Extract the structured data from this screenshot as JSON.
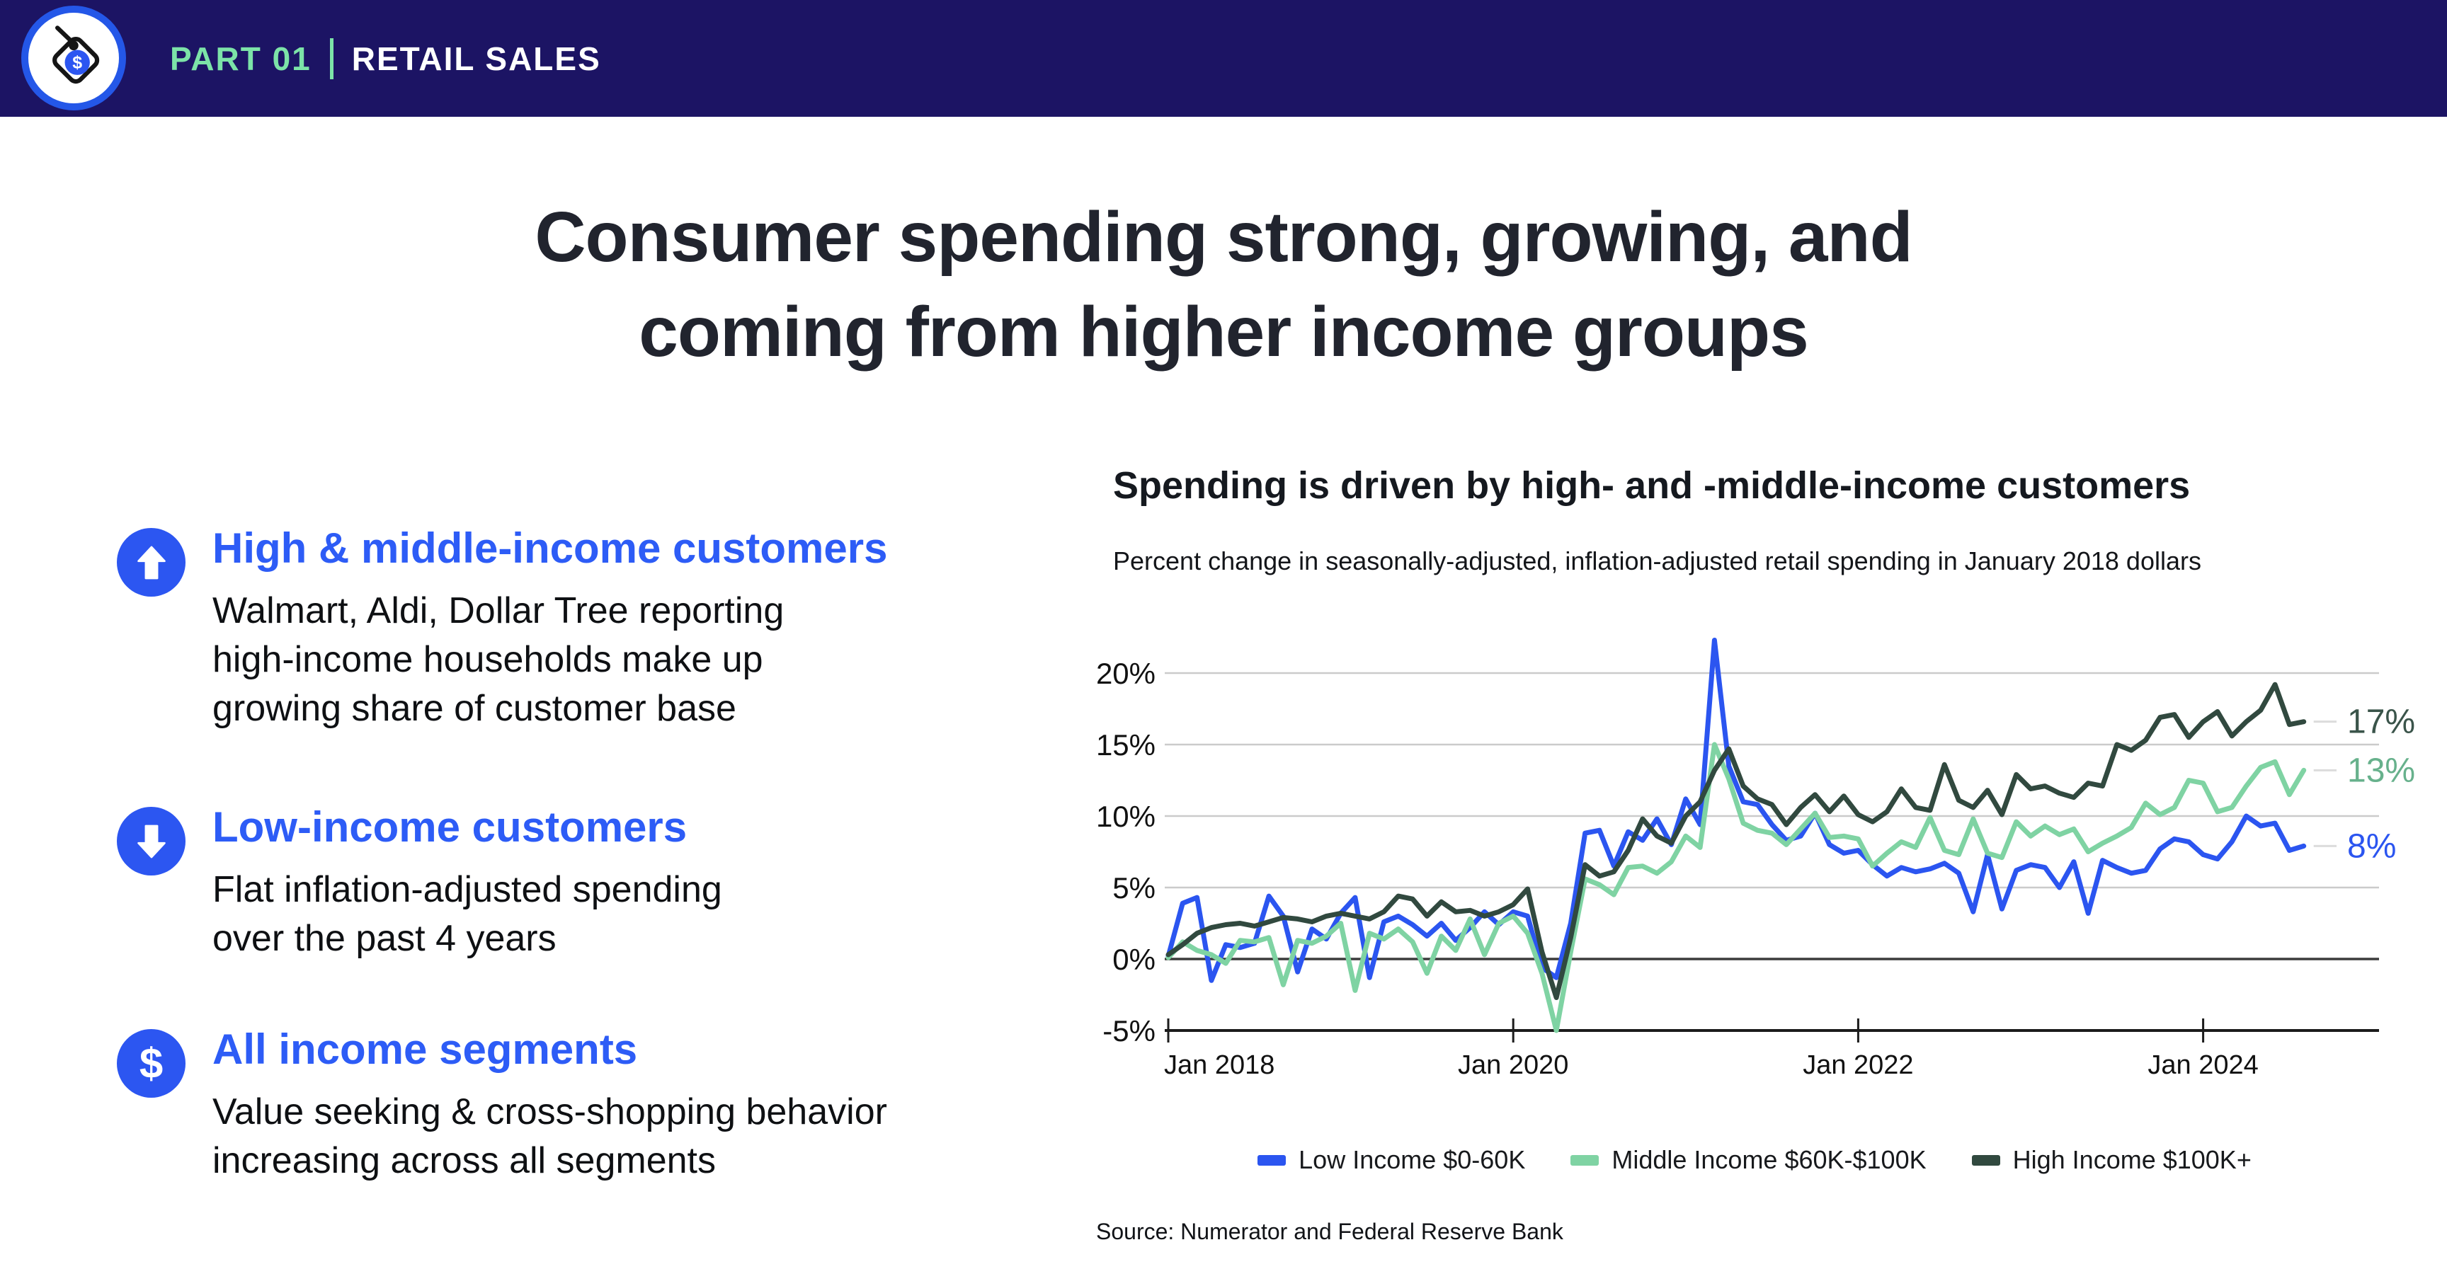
{
  "header": {
    "part_label": "PART 01",
    "section_label": "RETAIL SALES"
  },
  "title": {
    "line1": "Consumer spending strong, growing, and",
    "line2": "coming from higher income groups"
  },
  "bullets": [
    {
      "icon": "arrow-up-icon",
      "heading": "High & middle-income customers",
      "lines": [
        "Walmart, Aldi, Dollar Tree reporting",
        "high-income households make up",
        "growing share of customer base"
      ]
    },
    {
      "icon": "arrow-down-icon",
      "heading": "Low-income customers",
      "lines": [
        "Flat inflation-adjusted spending",
        "over the past 4 years"
      ]
    },
    {
      "icon": "dollar-icon",
      "heading": "All income segments",
      "lines": [
        "Value seeking & cross-shopping behavior",
        "increasing across all segments"
      ]
    }
  ],
  "chart": {
    "title": "Spending is driven by high- and -middle-income customers",
    "subtitle": "Percent change in seasonally-adjusted, inflation-adjusted retail spending in January 2018 dollars",
    "source": "Source: Numerator and Federal Reserve Bank"
  },
  "colors": {
    "header_bg": "#1C1464",
    "accent_mint": "#7CE3A8",
    "accent_blue": "#2C56F1",
    "heading_blue": "#2D5CF6",
    "grid": "#CBCBCB",
    "zero_line": "#3B3B3B",
    "axis": "#1C1C1C"
  },
  "chart_data": {
    "type": "line",
    "title": "Spending is driven by high- and -middle-income customers",
    "x_unit": "month",
    "x_start": "Jan 2018",
    "x_end": "Aug 2024",
    "ylim": [
      -5,
      22.5
    ],
    "grid": true,
    "legend_position": "bottom",
    "x_ticks": [
      {
        "label": "Jan 2018",
        "month": 0
      },
      {
        "label": "Jan 2020",
        "month": 24
      },
      {
        "label": "Jan 2022",
        "month": 48
      },
      {
        "label": "Jan 2024",
        "month": 72
      }
    ],
    "y_ticks": [
      {
        "label": "20%",
        "value": 20
      },
      {
        "label": "15%",
        "value": 15
      },
      {
        "label": "10%",
        "value": 10
      },
      {
        "label": "5%",
        "value": 5
      },
      {
        "label": "0%",
        "value": 0
      },
      {
        "label": "-5%",
        "value": -5
      }
    ],
    "gridline_values": [
      5,
      10,
      15,
      20
    ],
    "zero_line": 0,
    "series": [
      {
        "name": "Low Income $0-60K",
        "color": "#2B55F0",
        "end_label": "8%",
        "end_label_color": "#2B55F0",
        "values": [
          0.2,
          3.9,
          4.3,
          -1.5,
          1.0,
          0.8,
          1.1,
          4.4,
          3.0,
          -0.9,
          2.1,
          1.4,
          3.2,
          4.3,
          -1.3,
          2.6,
          3.0,
          2.4,
          1.6,
          2.5,
          1.3,
          2.2,
          3.3,
          2.4,
          3.3,
          3.0,
          -0.6,
          -1.3,
          2.5,
          8.8,
          9.0,
          6.5,
          8.9,
          8.3,
          9.8,
          8.0,
          11.2,
          9.4,
          22.3,
          13.5,
          11.0,
          10.8,
          9.4,
          8.3,
          8.6,
          10.2,
          8.0,
          7.4,
          7.6,
          6.6,
          5.8,
          6.4,
          6.1,
          6.3,
          6.7,
          6.0,
          3.3,
          7.3,
          3.5,
          6.2,
          6.6,
          6.4,
          5.0,
          6.8,
          3.2,
          6.9,
          6.4,
          6.0,
          6.2,
          7.7,
          8.4,
          8.2,
          7.3,
          7.0,
          8.2,
          10.0,
          9.3,
          9.5,
          7.6,
          7.9
        ]
      },
      {
        "name": "Middle Income $60K-$100K",
        "color": "#7FD3A3",
        "end_label": "13%",
        "end_label_color": "#67B18C",
        "values": [
          0.1,
          1.2,
          0.6,
          0.3,
          -0.3,
          1.3,
          1.2,
          1.5,
          -1.8,
          1.3,
          1.1,
          1.6,
          2.5,
          -2.2,
          1.8,
          1.4,
          2.1,
          1.2,
          -1.0,
          1.6,
          0.6,
          2.8,
          0.3,
          2.5,
          3.0,
          1.8,
          -1.0,
          -5.0,
          0.5,
          5.6,
          5.2,
          4.5,
          6.4,
          6.5,
          6.0,
          6.8,
          8.6,
          7.8,
          15.0,
          12.6,
          9.5,
          9.0,
          8.8,
          8.0,
          9.1,
          10.2,
          8.5,
          8.6,
          8.4,
          6.5,
          7.4,
          8.2,
          7.8,
          9.9,
          7.6,
          7.3,
          9.8,
          7.4,
          7.1,
          9.6,
          8.6,
          9.3,
          8.7,
          9.1,
          7.5,
          8.1,
          8.6,
          9.2,
          10.9,
          10.1,
          10.6,
          12.5,
          12.3,
          10.3,
          10.6,
          12.1,
          13.4,
          13.8,
          11.5,
          13.2
        ]
      },
      {
        "name": "High Income $100K+",
        "color": "#31493F",
        "end_label": "17%",
        "end_label_color": "#3A544A",
        "values": [
          0.3,
          1.0,
          1.8,
          2.2,
          2.4,
          2.5,
          2.3,
          2.6,
          2.9,
          2.8,
          2.6,
          3.0,
          3.2,
          3.0,
          2.8,
          3.3,
          4.4,
          4.2,
          3.0,
          4.0,
          3.3,
          3.4,
          3.0,
          3.3,
          3.8,
          4.9,
          0.5,
          -2.7,
          1.5,
          6.6,
          5.8,
          6.1,
          7.6,
          9.8,
          8.6,
          8.1,
          10.0,
          11.0,
          13.2,
          14.7,
          12.1,
          11.2,
          10.8,
          9.4,
          10.6,
          11.5,
          10.3,
          11.4,
          10.1,
          9.6,
          10.3,
          11.9,
          10.6,
          10.4,
          13.6,
          11.1,
          10.6,
          11.8,
          10.1,
          12.9,
          11.9,
          12.1,
          11.6,
          11.3,
          12.3,
          12.1,
          15.0,
          14.6,
          15.3,
          16.9,
          17.1,
          15.5,
          16.6,
          17.3,
          15.6,
          16.6,
          17.4,
          19.2,
          16.4,
          16.6
        ]
      }
    ]
  }
}
